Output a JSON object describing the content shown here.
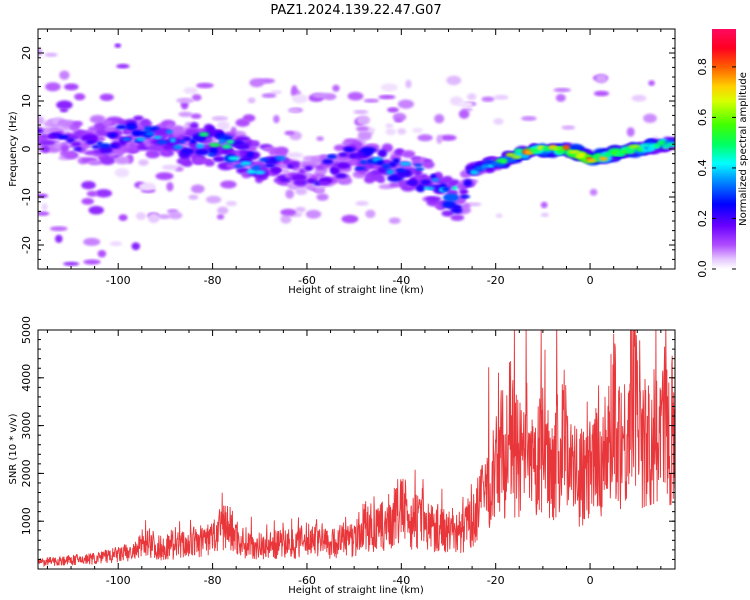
{
  "title": "PAZ1.2024.139.22.47.G07",
  "spectrogram": {
    "type": "heatmap",
    "xlabel": "Height of straight line (km)",
    "ylabel": "Frequency (Hz)",
    "xlim": [
      -117,
      18
    ],
    "ylim": [
      -25,
      25
    ],
    "xticks": [
      -100,
      -80,
      -60,
      -40,
      -20,
      0
    ],
    "yticks": [
      -20,
      -10,
      0,
      10,
      20
    ],
    "colorbar": {
      "label": "Normalized spectral amplitude",
      "ticks": [
        0.0,
        0.2,
        0.4,
        0.6,
        0.8
      ],
      "range": [
        0,
        0.95
      ],
      "colormap": "gist_rainbow_r"
    },
    "ridge": {
      "x": [
        -115,
        -110,
        -105,
        -100,
        -95,
        -90,
        -85,
        -80,
        -75,
        -70,
        -65,
        -60,
        -55,
        -50,
        -45,
        -40,
        -35,
        -32,
        -29,
        -27,
        -26,
        -24,
        -20,
        -15,
        -10,
        -5,
        0,
        5,
        10,
        15,
        18
      ],
      "freq": [
        2,
        2,
        1,
        2,
        3,
        2,
        1,
        1,
        -1,
        -3,
        -4,
        -6,
        -4,
        -2,
        -3,
        -4,
        -6,
        -8,
        -10,
        -12,
        -5,
        -4,
        -3,
        -1,
        0,
        0,
        -2,
        -1,
        0,
        1,
        1
      ],
      "amplitude": [
        0.2,
        0.25,
        0.3,
        0.35,
        0.4,
        0.35,
        0.35,
        0.5,
        0.45,
        0.4,
        0.3,
        0.2,
        0.25,
        0.3,
        0.4,
        0.35,
        0.35,
        0.4,
        0.45,
        0.35,
        0.3,
        0.4,
        0.55,
        0.75,
        0.8,
        0.75,
        0.85,
        0.7,
        0.75,
        0.6,
        0.5
      ]
    }
  },
  "snr": {
    "type": "line",
    "xlabel": "Height of straight line (km)",
    "ylabel": "SNR (10 * v/v)",
    "xlim": [
      -117,
      18
    ],
    "ylim": [
      0,
      5000
    ],
    "xticks": [
      -100,
      -80,
      -60,
      -40,
      -20,
      0
    ],
    "yticks": [
      1000,
      2000,
      3000,
      4000,
      5000
    ],
    "color": "#e8363a",
    "x": [
      -117,
      -112,
      -108,
      -104,
      -100,
      -96,
      -94,
      -92,
      -88,
      -84,
      -80,
      -77,
      -74,
      -70,
      -66,
      -62,
      -58,
      -55,
      -52,
      -50,
      -48,
      -45,
      -42,
      -40,
      -38,
      -36,
      -34,
      -32,
      -30,
      -28,
      -26,
      -24,
      -22,
      -20,
      -19,
      -18,
      -17,
      -16,
      -14,
      -12,
      -10,
      -9,
      -8,
      -6,
      -5,
      -4,
      -2,
      0,
      2,
      4,
      5,
      6,
      8,
      9,
      10,
      12,
      14,
      16,
      18
    ],
    "y": [
      120,
      150,
      170,
      200,
      260,
      320,
      600,
      380,
      420,
      480,
      560,
      800,
      500,
      420,
      450,
      470,
      600,
      450,
      560,
      500,
      800,
      700,
      900,
      1100,
      900,
      850,
      800,
      750,
      700,
      650,
      800,
      1200,
      1700,
      2000,
      2600,
      2300,
      2900,
      2400,
      2200,
      2000,
      2500,
      2300,
      2200,
      2500,
      3000,
      2100,
      1900,
      2000,
      2300,
      2500,
      3600,
      2800,
      2600,
      4600,
      3000,
      2500,
      2800,
      2900,
      3000
    ]
  }
}
